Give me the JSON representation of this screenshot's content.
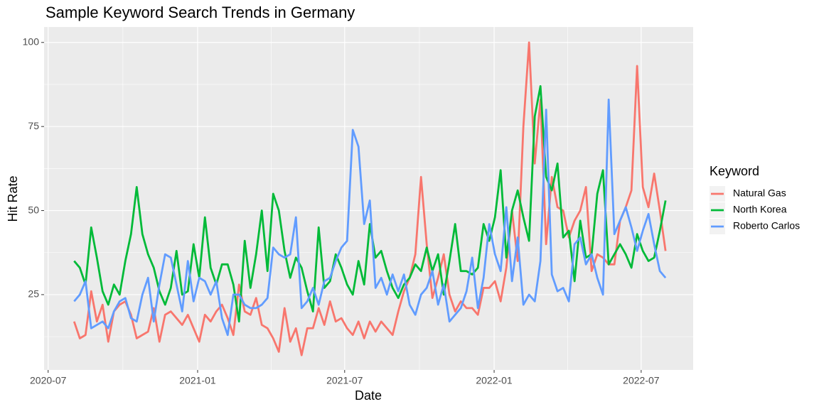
{
  "chart_data": {
    "type": "line",
    "title": "Sample Keyword Search Trends in Germany",
    "x_label": "Date",
    "y_label": "Hit Rate",
    "legend_title": "Keyword",
    "legend_position": "right",
    "grid": true,
    "xlim": [
      "2020-06-26",
      "2022-09-03"
    ],
    "xticks": [
      {
        "value": "2020-07-01",
        "label": "2020-07"
      },
      {
        "value": "2021-01-01",
        "label": "2021-01"
      },
      {
        "value": "2021-07-01",
        "label": "2021-07"
      },
      {
        "value": "2022-01-01",
        "label": "2022-01"
      },
      {
        "value": "2022-07-01",
        "label": "2022-07"
      }
    ],
    "ylim": [
      2.6,
      104.6
    ],
    "yticks": [
      25,
      50,
      75,
      100
    ],
    "x": [
      "2020-08-02",
      "2020-08-09",
      "2020-08-16",
      "2020-08-23",
      "2020-08-30",
      "2020-09-06",
      "2020-09-13",
      "2020-09-20",
      "2020-09-27",
      "2020-10-04",
      "2020-10-11",
      "2020-10-18",
      "2020-10-25",
      "2020-11-01",
      "2020-11-08",
      "2020-11-15",
      "2020-11-22",
      "2020-11-29",
      "2020-12-06",
      "2020-12-13",
      "2020-12-20",
      "2020-12-27",
      "2021-01-03",
      "2021-01-10",
      "2021-01-17",
      "2021-01-24",
      "2021-01-31",
      "2021-02-07",
      "2021-02-14",
      "2021-02-21",
      "2021-02-28",
      "2021-03-07",
      "2021-03-14",
      "2021-03-21",
      "2021-03-28",
      "2021-04-04",
      "2021-04-11",
      "2021-04-18",
      "2021-04-25",
      "2021-05-02",
      "2021-05-09",
      "2021-05-16",
      "2021-05-23",
      "2021-05-30",
      "2021-06-06",
      "2021-06-13",
      "2021-06-20",
      "2021-06-27",
      "2021-07-04",
      "2021-07-11",
      "2021-07-18",
      "2021-07-25",
      "2021-08-01",
      "2021-08-08",
      "2021-08-15",
      "2021-08-22",
      "2021-08-29",
      "2021-09-05",
      "2021-09-12",
      "2021-09-19",
      "2021-09-26",
      "2021-10-03",
      "2021-10-10",
      "2021-10-17",
      "2021-10-24",
      "2021-10-31",
      "2021-11-07",
      "2021-11-14",
      "2021-11-21",
      "2021-11-28",
      "2021-12-05",
      "2021-12-12",
      "2021-12-19",
      "2021-12-26",
      "2022-01-02",
      "2022-01-09",
      "2022-01-16",
      "2022-01-23",
      "2022-01-30",
      "2022-02-06",
      "2022-02-13",
      "2022-02-20",
      "2022-02-27",
      "2022-03-06",
      "2022-03-13",
      "2022-03-20",
      "2022-03-27",
      "2022-04-03",
      "2022-04-10",
      "2022-04-17",
      "2022-04-24",
      "2022-05-01",
      "2022-05-08",
      "2022-05-15",
      "2022-05-22",
      "2022-05-29",
      "2022-06-05",
      "2022-06-12",
      "2022-06-19",
      "2022-06-26",
      "2022-07-03",
      "2022-07-10",
      "2022-07-17",
      "2022-07-24",
      "2022-07-31"
    ],
    "series": [
      {
        "name": "Natural Gas",
        "color": "#F8766D",
        "values": [
          17,
          12,
          13,
          26,
          17,
          22,
          11,
          20,
          22,
          23,
          19,
          12,
          13,
          14,
          21,
          11,
          19,
          20,
          18,
          16,
          19,
          15,
          11,
          19,
          17,
          20,
          22,
          18,
          13,
          28,
          20,
          19,
          24,
          16,
          15,
          12,
          8,
          21,
          11,
          15,
          7,
          15,
          15,
          21,
          16,
          23,
          17,
          18,
          15,
          13,
          17,
          12,
          17,
          14,
          17,
          15,
          13,
          20,
          26,
          30,
          37,
          60,
          40,
          24,
          30,
          37,
          25,
          20,
          23,
          21,
          21,
          19,
          27,
          27,
          29,
          23,
          33,
          50,
          35,
          75,
          100,
          64,
          83,
          40,
          60,
          51,
          50,
          42,
          47,
          50,
          57,
          32,
          37,
          36,
          34,
          34,
          47,
          51,
          56,
          93,
          57,
          51,
          61,
          50,
          38
        ]
      },
      {
        "name": "North Korea",
        "color": "#00BA38",
        "values": [
          35,
          33,
          28,
          45,
          36,
          26,
          22,
          28,
          25,
          35,
          43,
          57,
          43,
          37,
          33,
          26,
          22,
          27,
          38,
          25,
          26,
          40,
          30,
          48,
          33,
          28,
          34,
          34,
          28,
          17,
          41,
          27,
          37,
          50,
          32,
          55,
          50,
          38,
          30,
          36,
          33,
          26,
          20,
          45,
          27,
          29,
          37,
          33,
          28,
          25,
          35,
          28,
          46,
          36,
          38,
          32,
          27,
          24,
          28,
          30,
          34,
          32,
          39,
          32,
          37,
          25,
          35,
          46,
          32,
          32,
          31,
          33,
          46,
          41,
          48,
          62,
          36,
          50,
          56,
          48,
          41,
          78,
          87,
          60,
          56,
          64,
          42,
          44,
          29,
          47,
          36,
          37,
          55,
          62,
          34,
          37,
          40,
          37,
          33,
          43,
          38,
          35,
          36,
          44,
          53
        ]
      },
      {
        "name": "Roberto Carlos",
        "color": "#619CFF",
        "values": [
          23,
          25,
          29,
          15,
          16,
          17,
          15,
          20,
          23,
          24,
          18,
          17,
          25,
          30,
          17,
          28,
          37,
          36,
          28,
          20,
          35,
          23,
          30,
          29,
          25,
          29,
          18,
          13,
          25,
          25,
          22,
          21,
          21,
          22,
          24,
          39,
          37,
          36,
          37,
          48,
          21,
          23,
          27,
          22,
          29,
          30,
          35,
          39,
          41,
          74,
          69,
          46,
          53,
          27,
          30,
          25,
          31,
          26,
          31,
          22,
          19,
          25,
          27,
          32,
          22,
          28,
          17,
          19,
          21,
          26,
          36,
          21,
          30,
          46,
          37,
          32,
          51,
          29,
          42,
          22,
          25,
          23,
          35,
          80,
          31,
          26,
          27,
          23,
          40,
          42,
          34,
          37,
          30,
          25,
          83,
          43,
          47,
          51,
          45,
          38,
          44,
          49,
          40,
          32,
          30
        ]
      }
    ]
  }
}
